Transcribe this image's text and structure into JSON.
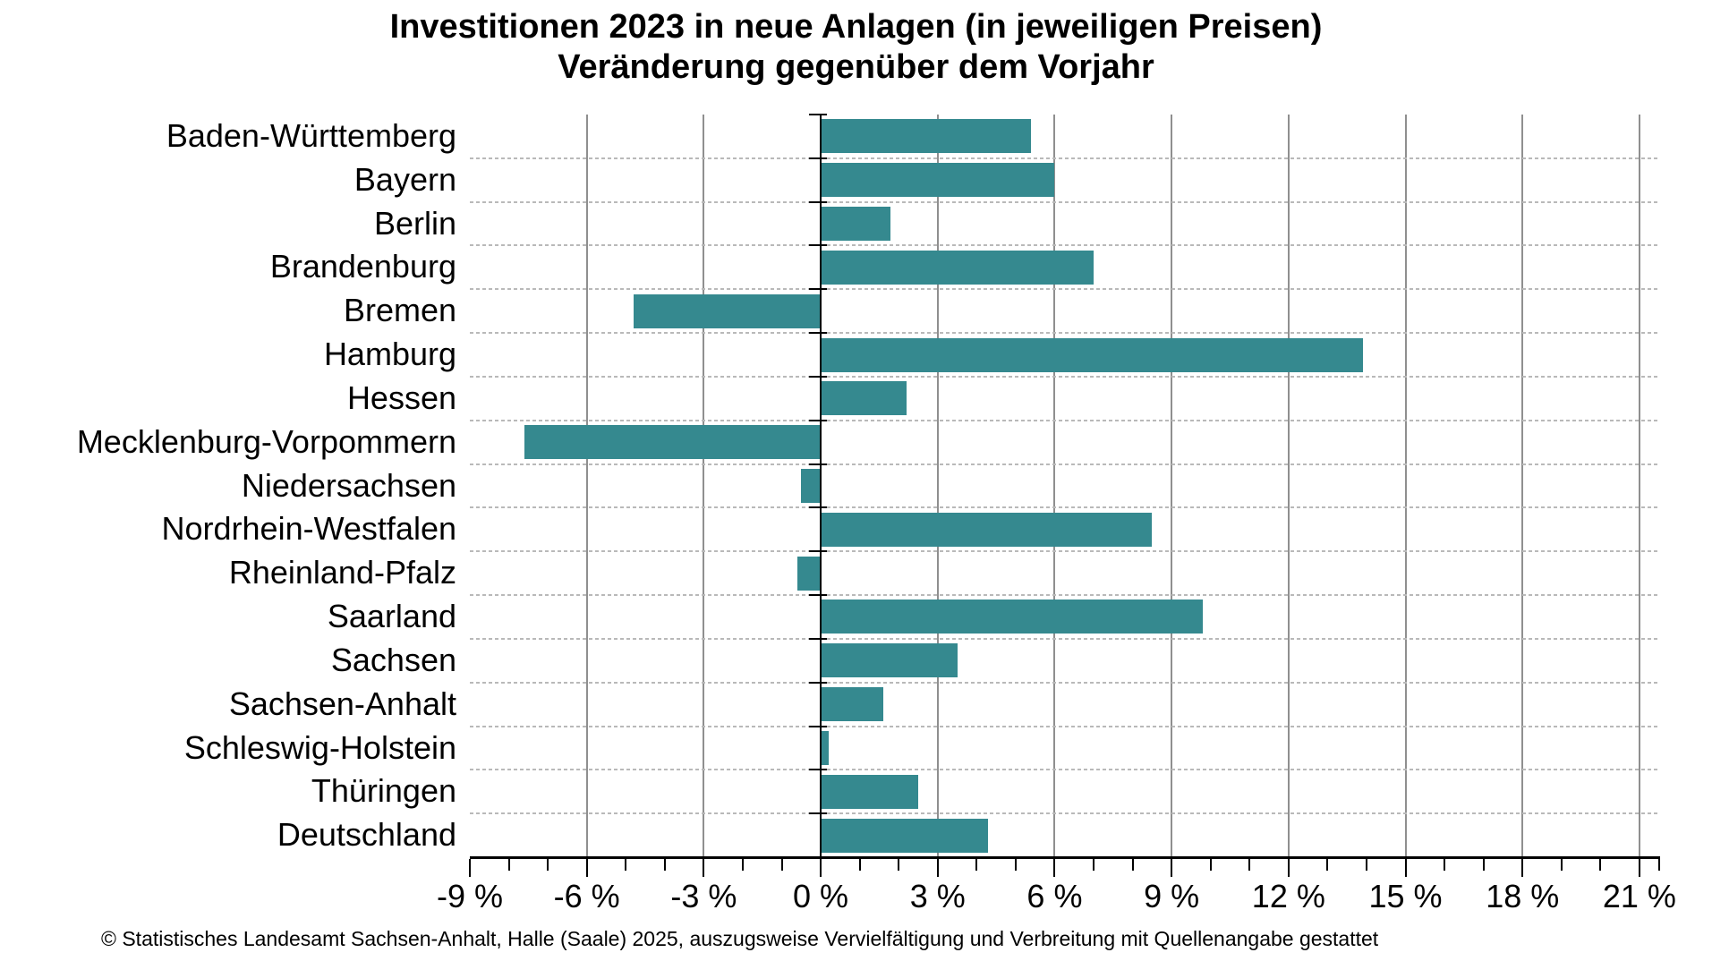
{
  "title": {
    "line1": "Investitionen 2023 in neue Anlagen (in jeweiligen Preisen)",
    "line2": "Veränderung gegenüber dem Vorjahr"
  },
  "footer": "© Statistisches Landesamt Sachsen-Anhalt, Halle (Saale) 2025, auszugsweise Vervielfältigung und Verbreitung mit Quellenangabe gestattet",
  "chart_data": {
    "type": "bar",
    "orientation": "horizontal",
    "title": "Investitionen 2023 in neue Anlagen (in jeweiligen Preisen) – Veränderung gegenüber dem Vorjahr",
    "unit": "%",
    "categories": [
      "Baden-Württemberg",
      "Bayern",
      "Berlin",
      "Brandenburg",
      "Bremen",
      "Hamburg",
      "Hessen",
      "Mecklenburg-Vorpommern",
      "Niedersachsen",
      "Nordrhein-Westfalen",
      "Rheinland-Pfalz",
      "Saarland",
      "Sachsen",
      "Sachsen-Anhalt",
      "Schleswig-Holstein",
      "Thüringen",
      "Deutschland"
    ],
    "values": [
      5.4,
      6.0,
      1.8,
      7.0,
      -4.8,
      13.9,
      2.2,
      -7.6,
      -0.5,
      8.5,
      -0.6,
      9.8,
      3.5,
      1.6,
      0.2,
      2.5,
      4.3
    ],
    "xlabel": "",
    "ylabel": "",
    "axis": {
      "min": -9,
      "max": 21.53,
      "major_step": 3,
      "minor_step": 1,
      "tick_values": [
        -9,
        -6,
        -3,
        0,
        3,
        6,
        9,
        12,
        15,
        18,
        21
      ],
      "tick_labels": [
        "-9 %",
        "-6 %",
        "-3 %",
        "0 %",
        "3 %",
        "6 %",
        "9 %",
        "12 %",
        "15 %",
        "18 %",
        "21 %"
      ]
    },
    "grid": {
      "vertical_major": true,
      "horizontal_row_separators": "dashed",
      "zero_line": true
    },
    "legend": null,
    "colors": {
      "bar": "#35898f",
      "gridline": "#8f8f8f",
      "row_separator": "#b9b9b9",
      "axis": "#000000",
      "background": "#ffffff"
    }
  }
}
